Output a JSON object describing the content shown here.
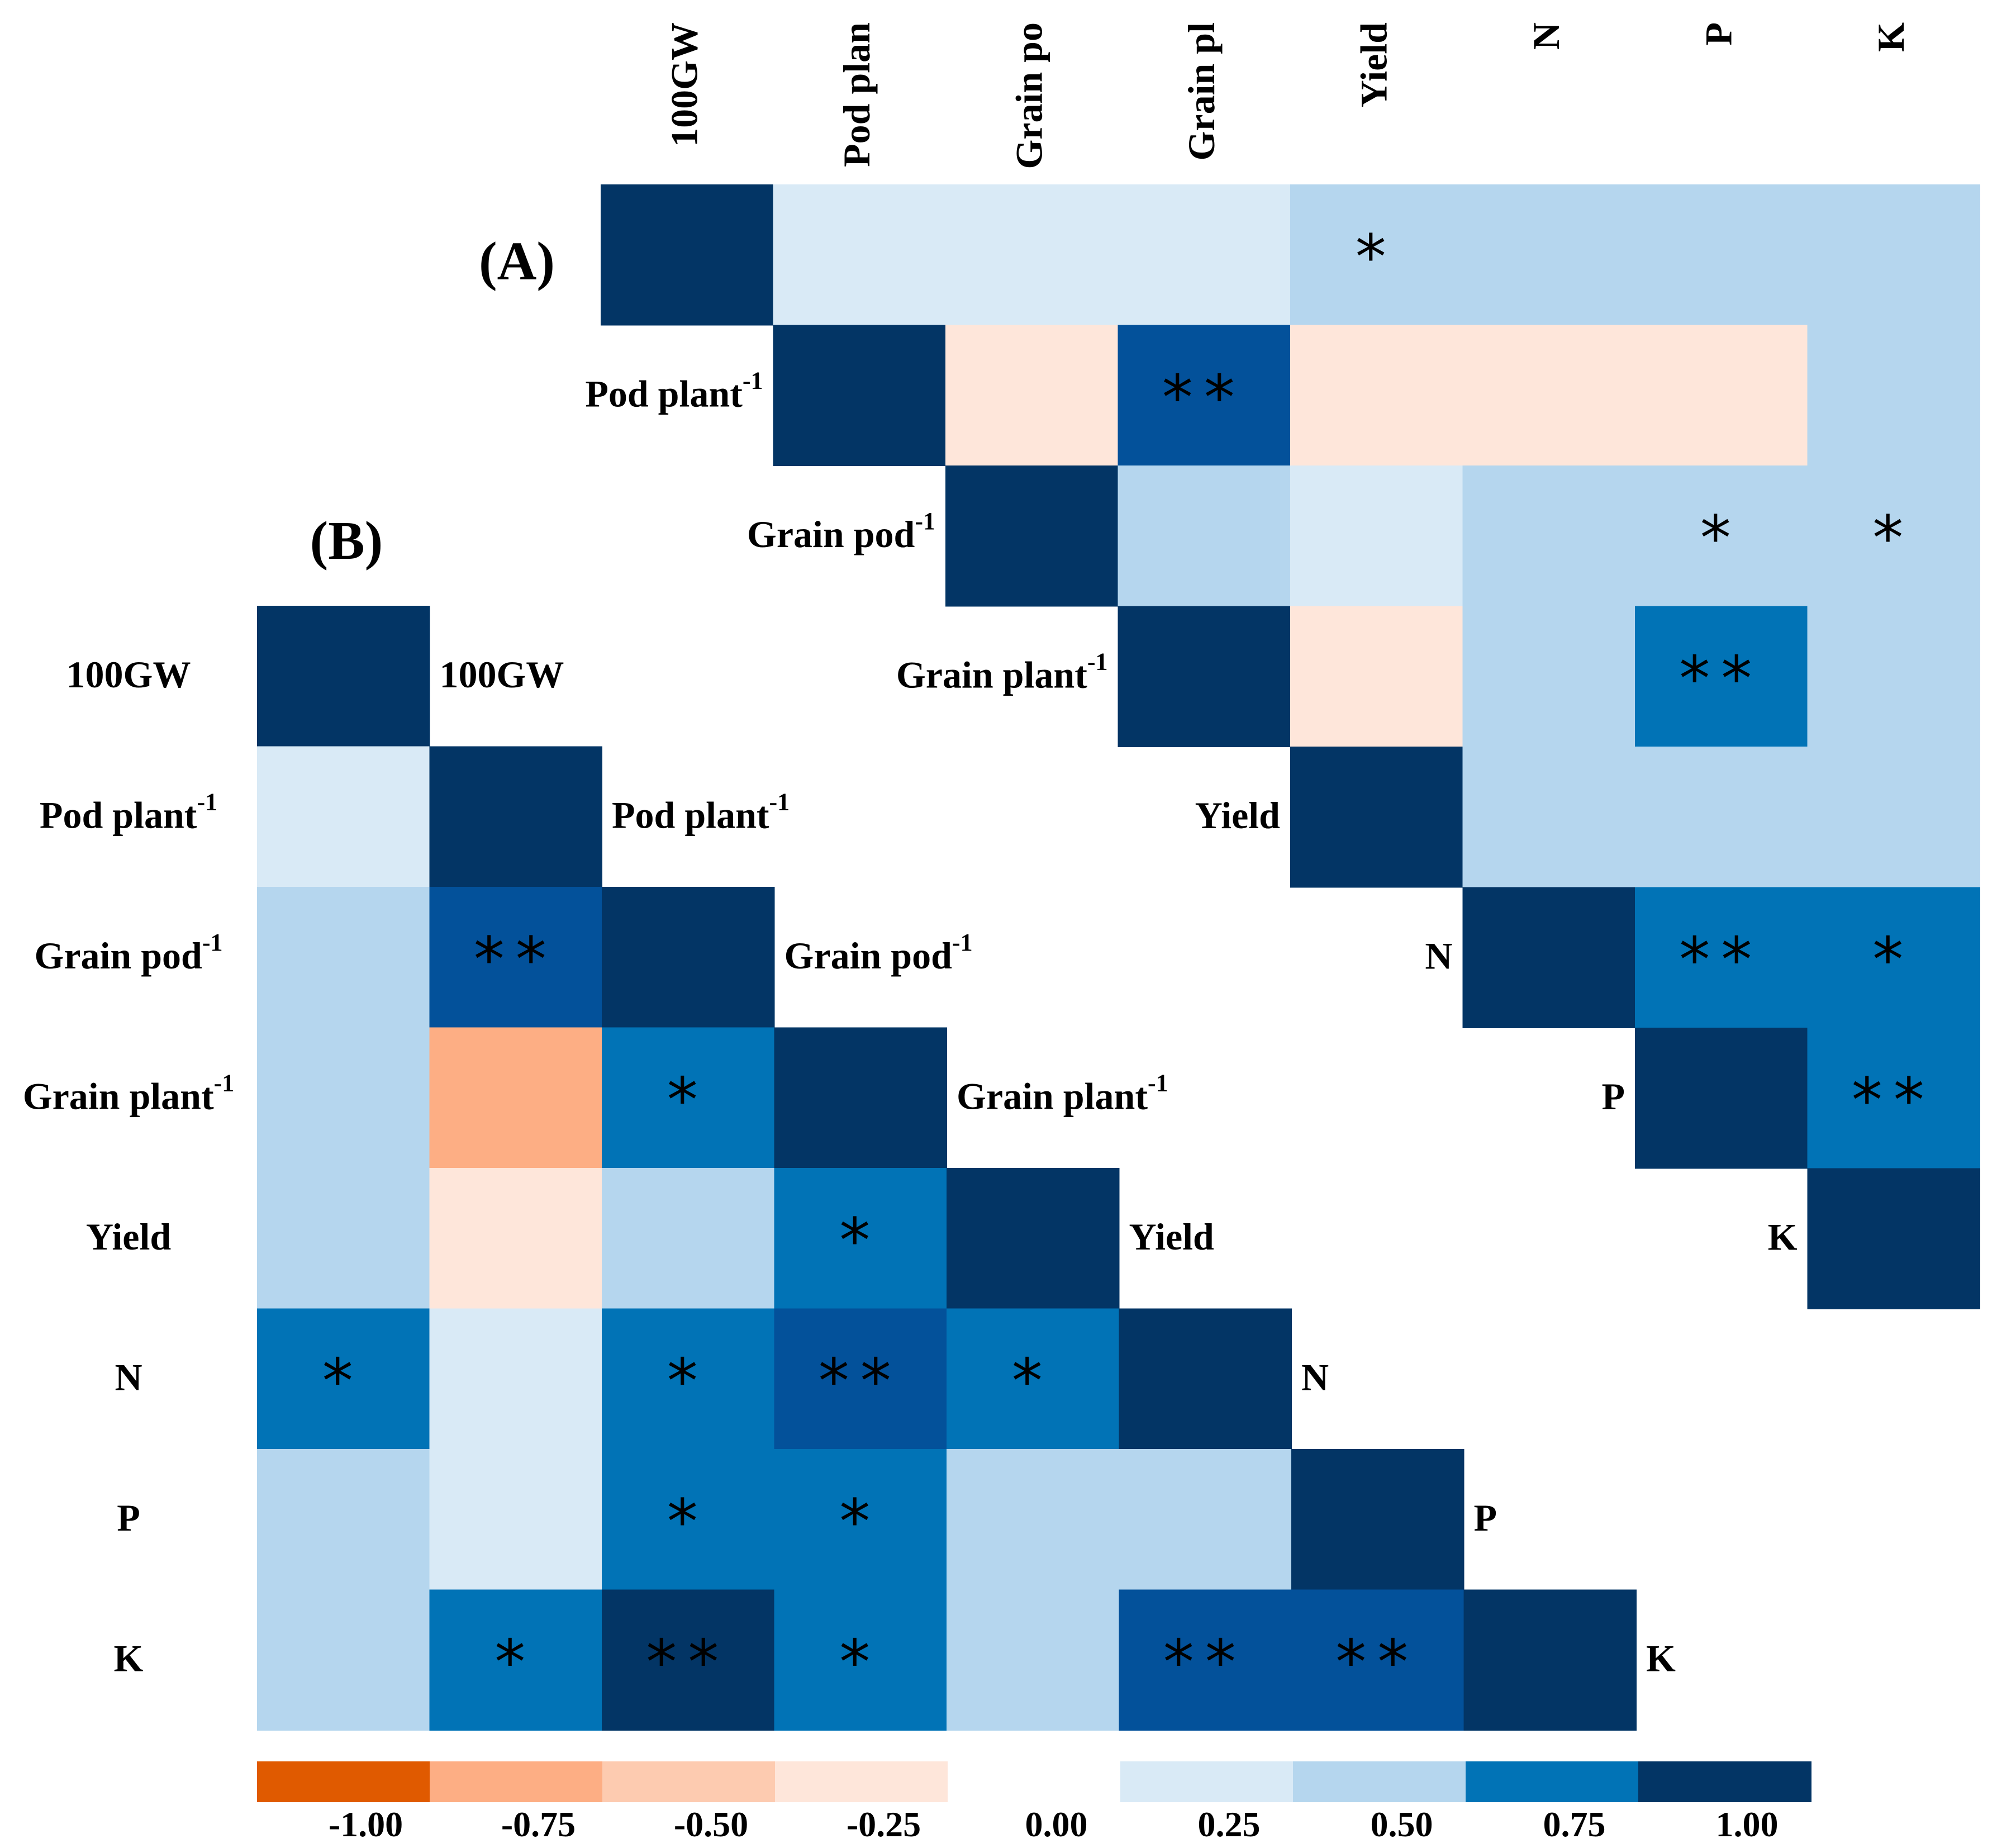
{
  "chart_data": [
    {
      "panel": "A",
      "type": "heatmap",
      "label": "(A)",
      "col_headers": [
        "100GW",
        "Pod plan",
        "Grain po",
        "Grain pl",
        "Yield",
        "N",
        "P",
        "K"
      ],
      "row_labels": [
        "100GW",
        "Pod plant",
        "Grain pod",
        "Grain plant",
        "Yield",
        "N",
        "P",
        "K"
      ],
      "row_label_sup": [
        "",
        "-1",
        "-1",
        "-1",
        "",
        "",
        "",
        ""
      ],
      "triangle": "upper",
      "cells": [
        [
          1.0,
          0.25,
          0.25,
          0.25,
          0.5,
          0.5,
          0.5,
          0.5
        ],
        [
          null,
          1.0,
          -0.25,
          0.75,
          -0.25,
          -0.25,
          -0.25,
          0.5
        ],
        [
          null,
          null,
          1.0,
          0.5,
          0.25,
          0.5,
          0.5,
          0.5
        ],
        [
          null,
          null,
          null,
          1.0,
          -0.25,
          0.5,
          0.75,
          0.5
        ],
        [
          null,
          null,
          null,
          null,
          1.0,
          0.5,
          0.5,
          0.5
        ],
        [
          null,
          null,
          null,
          null,
          null,
          1.0,
          0.75,
          0.75
        ],
        [
          null,
          null,
          null,
          null,
          null,
          null,
          1.0,
          0.75
        ],
        [
          null,
          null,
          null,
          null,
          null,
          null,
          null,
          1.0
        ]
      ],
      "dark_tone": [
        [
          false,
          false,
          false,
          false,
          false,
          false,
          false,
          false
        ],
        [
          false,
          false,
          false,
          true,
          false,
          false,
          false,
          false
        ],
        [
          false,
          false,
          false,
          false,
          false,
          false,
          false,
          false
        ],
        [
          false,
          false,
          false,
          false,
          false,
          false,
          false,
          false
        ],
        [
          false,
          false,
          false,
          false,
          false,
          false,
          false,
          false
        ],
        [
          false,
          false,
          false,
          false,
          false,
          false,
          false,
          false
        ],
        [
          false,
          false,
          false,
          false,
          false,
          false,
          false,
          false
        ],
        [
          false,
          false,
          false,
          false,
          false,
          false,
          false,
          false
        ]
      ],
      "significance": [
        [
          "",
          "",
          "",
          "",
          "*",
          "",
          "",
          ""
        ],
        [
          "",
          "",
          "",
          "**",
          "",
          "",
          "",
          ""
        ],
        [
          "",
          "",
          "",
          "",
          "",
          "",
          "*",
          "*"
        ],
        [
          "",
          "",
          "",
          "",
          "",
          "",
          "**",
          ""
        ],
        [
          "",
          "",
          "",
          "",
          "",
          "",
          "",
          ""
        ],
        [
          "",
          "",
          "",
          "",
          "",
          "",
          "**",
          "*"
        ],
        [
          "",
          "",
          "",
          "",
          "",
          "",
          "",
          "**"
        ],
        [
          "",
          "",
          "",
          "",
          "",
          "",
          "",
          ""
        ]
      ]
    },
    {
      "panel": "B",
      "type": "heatmap",
      "label": "(B)",
      "row_labels": [
        "100GW",
        "Pod plant",
        "Grain pod",
        "Grain plant",
        "Yield",
        "N",
        "P",
        "K"
      ],
      "row_label_sup": [
        "",
        "-1",
        "-1",
        "-1",
        "",
        "",
        "",
        ""
      ],
      "triangle": "lower",
      "cells": [
        [
          1.0,
          null,
          null,
          null,
          null,
          null,
          null,
          null
        ],
        [
          0.25,
          1.0,
          null,
          null,
          null,
          null,
          null,
          null
        ],
        [
          0.5,
          0.75,
          1.0,
          null,
          null,
          null,
          null,
          null
        ],
        [
          0.5,
          -0.75,
          0.75,
          1.0,
          null,
          null,
          null,
          null
        ],
        [
          0.5,
          -0.25,
          0.5,
          0.75,
          1.0,
          null,
          null,
          null
        ],
        [
          0.75,
          0.25,
          0.75,
          0.75,
          0.75,
          1.0,
          null,
          null
        ],
        [
          0.5,
          0.25,
          0.75,
          0.75,
          0.5,
          0.5,
          1.0,
          null
        ],
        [
          0.5,
          0.75,
          1.0,
          0.75,
          0.5,
          0.75,
          0.75,
          1.0
        ]
      ],
      "dark_tone": [
        [
          false,
          false,
          false,
          false,
          false,
          false,
          false,
          false
        ],
        [
          false,
          false,
          false,
          false,
          false,
          false,
          false,
          false
        ],
        [
          false,
          true,
          false,
          false,
          false,
          false,
          false,
          false
        ],
        [
          false,
          false,
          false,
          false,
          false,
          false,
          false,
          false
        ],
        [
          false,
          false,
          false,
          false,
          false,
          false,
          false,
          false
        ],
        [
          false,
          false,
          false,
          true,
          false,
          false,
          false,
          false
        ],
        [
          false,
          false,
          false,
          false,
          false,
          false,
          false,
          false
        ],
        [
          false,
          false,
          false,
          false,
          false,
          true,
          true,
          false
        ]
      ],
      "significance": [
        [
          "",
          "",
          "",
          "",
          "",
          "",
          "",
          ""
        ],
        [
          "",
          "",
          "",
          "",
          "",
          "",
          "",
          ""
        ],
        [
          "",
          "**",
          "",
          "",
          "",
          "",
          "",
          ""
        ],
        [
          "",
          "",
          "*",
          "",
          "",
          "",
          "",
          ""
        ],
        [
          "",
          "",
          "",
          "*",
          "",
          "",
          "",
          ""
        ],
        [
          "*",
          "",
          "*",
          "**",
          "*",
          "",
          "",
          ""
        ],
        [
          "",
          "",
          "*",
          "*",
          "",
          "",
          "",
          ""
        ],
        [
          "",
          "*",
          "**",
          "*",
          "",
          "**",
          "**",
          ""
        ]
      ]
    }
  ],
  "legend": {
    "ticks": [
      "-1.00",
      "-0.75",
      "-0.50",
      "-0.25",
      "0.00",
      "0.25",
      "0.50",
      "0.75",
      "1.00"
    ],
    "swatch_values": [
      -1.0,
      -0.75,
      -0.5,
      -0.25,
      null,
      0.25,
      0.5,
      0.75,
      1.0
    ]
  },
  "colors": {
    "-1.00": "#e05a00",
    "-0.75": "#fdae84",
    "-0.50": "#fdcbb0",
    "-0.25": "#fee6da",
    "0.25": "#d9eaf6",
    "0.50": "#b5d6ee",
    "0.50_mid": "#8fc1e6",
    "0.75": "#0173b6",
    "0.75_dark": "#03519a",
    "1.00": "#033565"
  }
}
